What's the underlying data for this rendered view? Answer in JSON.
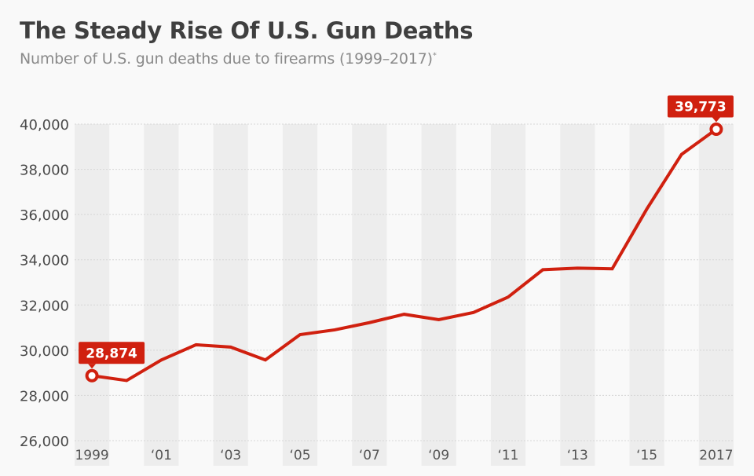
{
  "header": {
    "title": "The Steady Rise Of U.S. Gun Deaths",
    "subtitle": "Number of U.S. gun deaths due to firearms (1999–2017)",
    "subtitle_note_marker": "*"
  },
  "colors": {
    "line": "#d0200f",
    "band": "#ededed",
    "background": "#f9f9f9",
    "label_bg": "#d0200f"
  },
  "chart_data": {
    "type": "line",
    "title": "The Steady Rise Of U.S. Gun Deaths",
    "subtitle": "Number of U.S. gun deaths due to firearms (1999–2017)*",
    "xlabel": "",
    "ylabel": "",
    "x": [
      1999,
      2000,
      2001,
      2002,
      2003,
      2004,
      2005,
      2006,
      2007,
      2008,
      2009,
      2010,
      2011,
      2012,
      2013,
      2014,
      2015,
      2016,
      2017
    ],
    "series": [
      {
        "name": "U.S. gun deaths",
        "values": [
          28874,
          28660,
          29570,
          30240,
          30140,
          29570,
          30690,
          30900,
          31220,
          31590,
          31350,
          31670,
          32350,
          33560,
          33630,
          33600,
          36250,
          38660,
          39773
        ]
      }
    ],
    "ylim": [
      26000,
      40000
    ],
    "yticks": [
      26000,
      28000,
      30000,
      32000,
      34000,
      36000,
      38000,
      40000
    ],
    "ytick_labels": [
      "26,000",
      "28,000",
      "30,000",
      "32,000",
      "34,000",
      "36,000",
      "38,000",
      "40,000"
    ],
    "xtick_labels": [
      {
        "year": 1999,
        "label": "1999"
      },
      {
        "year": 2001,
        "label": "‘01"
      },
      {
        "year": 2003,
        "label": "‘03"
      },
      {
        "year": 2005,
        "label": "‘05"
      },
      {
        "year": 2007,
        "label": "‘07"
      },
      {
        "year": 2009,
        "label": "‘09"
      },
      {
        "year": 2011,
        "label": "‘11"
      },
      {
        "year": 2013,
        "label": "‘13"
      },
      {
        "year": 2015,
        "label": "‘15"
      },
      {
        "year": 2017,
        "label": "2017"
      }
    ],
    "annotations": [
      {
        "year": 1999,
        "text": "28,874",
        "position": "above-right"
      },
      {
        "year": 2017,
        "text": "39,773",
        "position": "above"
      }
    ],
    "grid": true,
    "legend": "none"
  }
}
